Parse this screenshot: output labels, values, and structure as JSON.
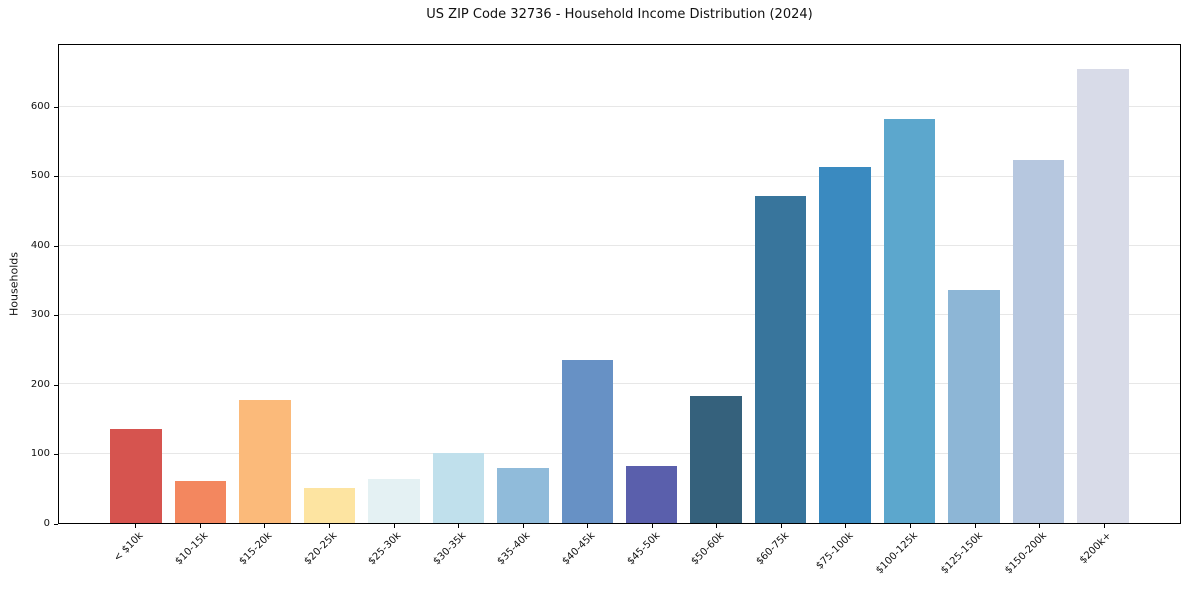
{
  "chart_data": {
    "type": "bar",
    "title": "US ZIP Code 32736 - Household Income Distribution (2024)",
    "xlabel": "",
    "ylabel": "Households",
    "categories": [
      "< $10k",
      "$10-15k",
      "$15-20k",
      "$20-25k",
      "$25-30k",
      "$30-35k",
      "$35-40k",
      "$40-45k",
      "$45-50k",
      "$50-60k",
      "$60-75k",
      "$75-100k",
      "$100-125k",
      "$125-150k",
      "$150-200k",
      "$200k+"
    ],
    "values": [
      135,
      61,
      177,
      51,
      64,
      101,
      80,
      235,
      82,
      184,
      472,
      514,
      583,
      336,
      524,
      655
    ],
    "bar_colors": [
      "#d6544f",
      "#f3875f",
      "#fbba7a",
      "#fde4a1",
      "#e4f1f3",
      "#c0e0ec",
      "#90bbda",
      "#6791c5",
      "#5a5fac",
      "#35617c",
      "#38759c",
      "#3a8ac0",
      "#5ca7cd",
      "#8db6d6",
      "#b6c7df",
      "#d8dbe8"
    ],
    "yticks": [
      0,
      100,
      200,
      300,
      400,
      500,
      600
    ],
    "ylim": [
      0,
      690
    ],
    "grid": "horizontal-only",
    "legend": "none",
    "background_color": "#ffffff",
    "spine_color": "#000000",
    "grid_color": "#e7e7e7",
    "text_color": "#111111",
    "x_tick_rotation_degrees": 45
  }
}
